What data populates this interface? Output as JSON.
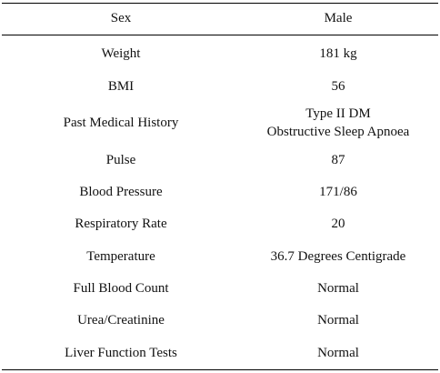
{
  "table": {
    "header": [
      "Sex",
      "Male"
    ],
    "rows": [
      [
        "Weight",
        "181 kg"
      ],
      [
        "BMI",
        "56"
      ],
      [
        "Past Medical History",
        [
          "Type II DM",
          "Obstructive Sleep Apnoea"
        ]
      ],
      [
        "Pulse",
        "87"
      ],
      [
        "Blood Pressure",
        "171/86"
      ],
      [
        "Respiratory Rate",
        "20"
      ],
      [
        "Temperature",
        "36.7 Degrees Centigrade"
      ],
      [
        "Full Blood Count",
        "Normal"
      ],
      [
        "Urea/Creatinine",
        "Normal"
      ],
      [
        "Liver Function Tests",
        "Normal"
      ]
    ]
  }
}
